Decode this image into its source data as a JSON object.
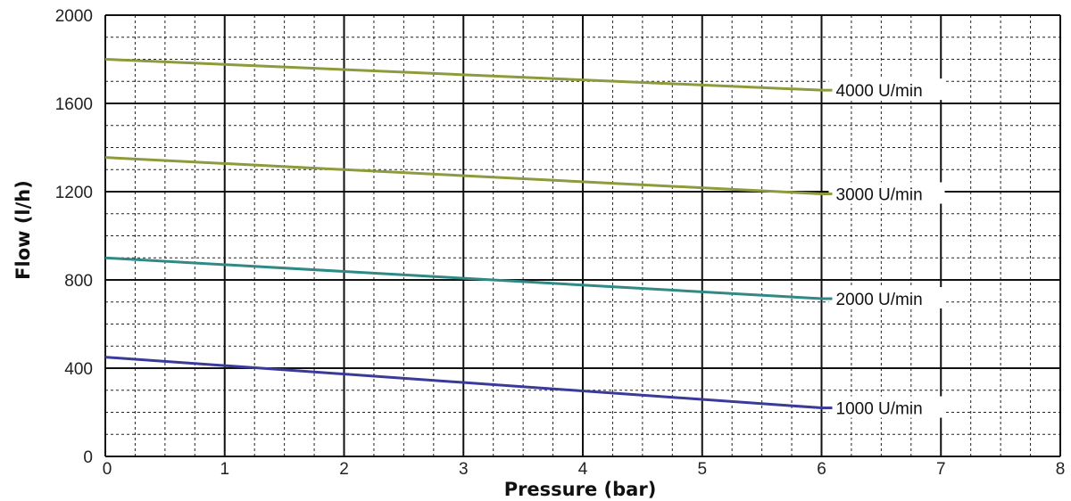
{
  "chart_data": {
    "type": "line",
    "xlabel": "Pressure (bar)",
    "ylabel": "Flow (l/h)",
    "xlim": [
      0,
      8
    ],
    "ylim": [
      0,
      2000
    ],
    "x_ticks": [
      "0",
      "1",
      "2",
      "3",
      "4",
      "5",
      "6",
      "7",
      "8"
    ],
    "y_ticks": [
      {
        "value": 0,
        "label": "0"
      },
      {
        "value": 400,
        "label": "400"
      },
      {
        "value": 800,
        "label": "800"
      },
      {
        "value": 1200,
        "label": "1200"
      },
      {
        "value": 1600,
        "label": "1600"
      },
      {
        "value": 2000,
        "label": "2000"
      }
    ],
    "grid": true,
    "series": [
      {
        "name": "4000 U/min",
        "color": "#8f9a3c",
        "x": [
          0,
          6
        ],
        "y": [
          1800,
          1660
        ]
      },
      {
        "name": "3000 U/min",
        "color": "#8f9a3c",
        "x": [
          0,
          6
        ],
        "y": [
          1355,
          1190
        ]
      },
      {
        "name": "2000 U/min",
        "color": "#2f8a86",
        "x": [
          0,
          6
        ],
        "y": [
          900,
          715
        ]
      },
      {
        "name": "1000 U/min",
        "color": "#3a3a9a",
        "x": [
          0,
          6
        ],
        "y": [
          450,
          220
        ]
      }
    ]
  }
}
